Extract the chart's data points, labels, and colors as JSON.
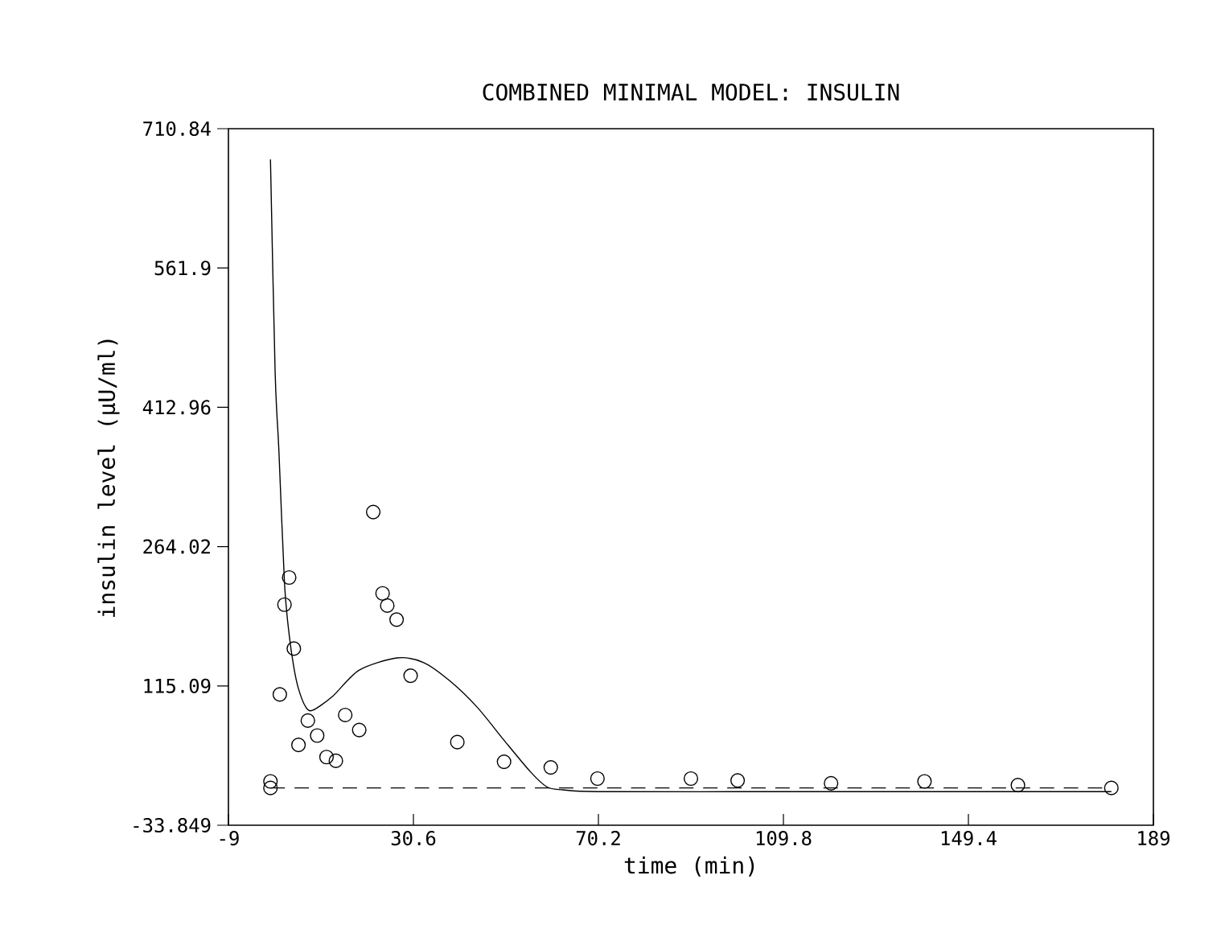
{
  "chart_data": {
    "type": "scatter",
    "title": "COMBINED MINIMAL MODEL: INSULIN",
    "xlabel": "time (min)",
    "ylabel": "insulin level (μU/ml)",
    "xlim": [
      -9,
      189
    ],
    "ylim": [
      -33.849,
      710.84
    ],
    "xticks": [
      -9,
      30.6,
      70.2,
      109.8,
      149.4,
      189
    ],
    "yticks": [
      -33.849,
      115.09,
      264.02,
      412.96,
      561.9,
      710.84
    ],
    "grid": false,
    "series": [
      {
        "color": "#000000",
        "marker": "circle",
        "x": [
          0,
          0,
          2,
          3,
          4,
          5,
          6,
          8,
          10,
          12,
          14,
          16,
          19,
          22,
          24,
          25,
          27,
          30,
          40,
          50,
          60,
          70,
          90,
          100,
          120,
          140,
          160,
          180
        ],
        "values": [
          13,
          6,
          106,
          202,
          231,
          155,
          52,
          78,
          62,
          39,
          35,
          84,
          68,
          301,
          214,
          201,
          186,
          126,
          55,
          34,
          28,
          16,
          16,
          14,
          11,
          13,
          9,
          6
        ]
      },
      {
        "type": "line",
        "color": "#000000",
        "line_style": "solid",
        "x": [
          0,
          1,
          1.8,
          3,
          4,
          5,
          6,
          7.5,
          9,
          13.3,
          19,
          27.1,
          32.8,
          38.5,
          44.3,
          50,
          55.7,
          59.2,
          62.6,
          70,
          100,
          150,
          180
        ],
        "values": [
          678,
          450,
          367,
          225,
          170,
          135,
          112,
          93,
          89,
          104,
          132,
          145,
          140,
          120,
          92,
          57,
          23,
          7,
          4,
          2,
          2,
          2,
          2
        ]
      }
    ],
    "ref_lines": [
      {
        "axis": "y",
        "value": 6,
        "line_style": "dashed",
        "color": "#000000"
      }
    ]
  }
}
